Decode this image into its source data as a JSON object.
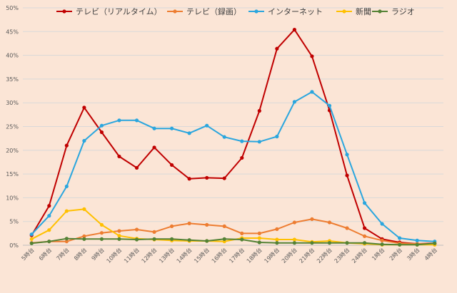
{
  "chart_data": {
    "type": "line",
    "title": "",
    "xlabel": "",
    "ylabel": "",
    "ylim": [
      0,
      50
    ],
    "y_tick_step": 5,
    "y_tick_suffix": "%",
    "grid": "horizontal",
    "legend_position": "top",
    "categories": [
      "5時台",
      "6時台",
      "7時台",
      "8時台",
      "9時台",
      "10時台",
      "11時台",
      "12時台",
      "13時台",
      "14時台",
      "15時台",
      "16時台",
      "17時台",
      "18時台",
      "19時台",
      "20時台",
      "21時台",
      "22時台",
      "23時台",
      "24時台",
      "1時台",
      "2時台",
      "3時台",
      "4時台"
    ],
    "series": [
      {
        "name": "テレビ（リアルタイム）",
        "color": "#c00000",
        "values": [
          2.1,
          8.3,
          21.0,
          29.0,
          23.8,
          18.7,
          16.3,
          20.6,
          16.9,
          14.0,
          14.2,
          14.1,
          18.4,
          28.3,
          41.4,
          45.4,
          39.8,
          28.4,
          14.7,
          3.6,
          1.3,
          0.6,
          0.3,
          0.4
        ]
      },
      {
        "name": "テレビ（録画）",
        "color": "#ed7d31",
        "values": [
          0.5,
          0.8,
          0.8,
          1.9,
          2.6,
          3.0,
          3.3,
          2.8,
          4.0,
          4.6,
          4.3,
          4.0,
          2.5,
          2.5,
          3.4,
          4.8,
          5.5,
          4.8,
          3.6,
          1.9,
          1.0,
          0.4,
          0.3,
          0.3
        ]
      },
      {
        "name": "インターネット",
        "color": "#2aa6de",
        "values": [
          2.3,
          6.2,
          12.4,
          22.0,
          25.2,
          26.3,
          26.3,
          24.6,
          24.6,
          23.6,
          25.2,
          22.8,
          21.9,
          21.8,
          22.9,
          30.2,
          32.3,
          29.4,
          19.1,
          8.9,
          4.5,
          1.5,
          1.0,
          0.8
        ]
      },
      {
        "name": "新聞",
        "color": "#ffc000",
        "values": [
          1.3,
          3.2,
          7.2,
          7.6,
          4.3,
          2.0,
          1.4,
          1.2,
          1.0,
          0.9,
          0.9,
          0.8,
          1.5,
          1.5,
          1.2,
          1.2,
          0.7,
          0.9,
          0.5,
          0.3,
          0.1,
          0.1,
          0.1,
          0.1
        ]
      },
      {
        "name": "ラジオ",
        "color": "#548235",
        "values": [
          0.4,
          0.8,
          1.4,
          1.3,
          1.3,
          1.3,
          1.2,
          1.3,
          1.3,
          1.1,
          0.9,
          1.3,
          1.2,
          0.6,
          0.5,
          0.5,
          0.5,
          0.5,
          0.5,
          0.5,
          0.2,
          0.1,
          0.1,
          0.4
        ]
      }
    ]
  }
}
